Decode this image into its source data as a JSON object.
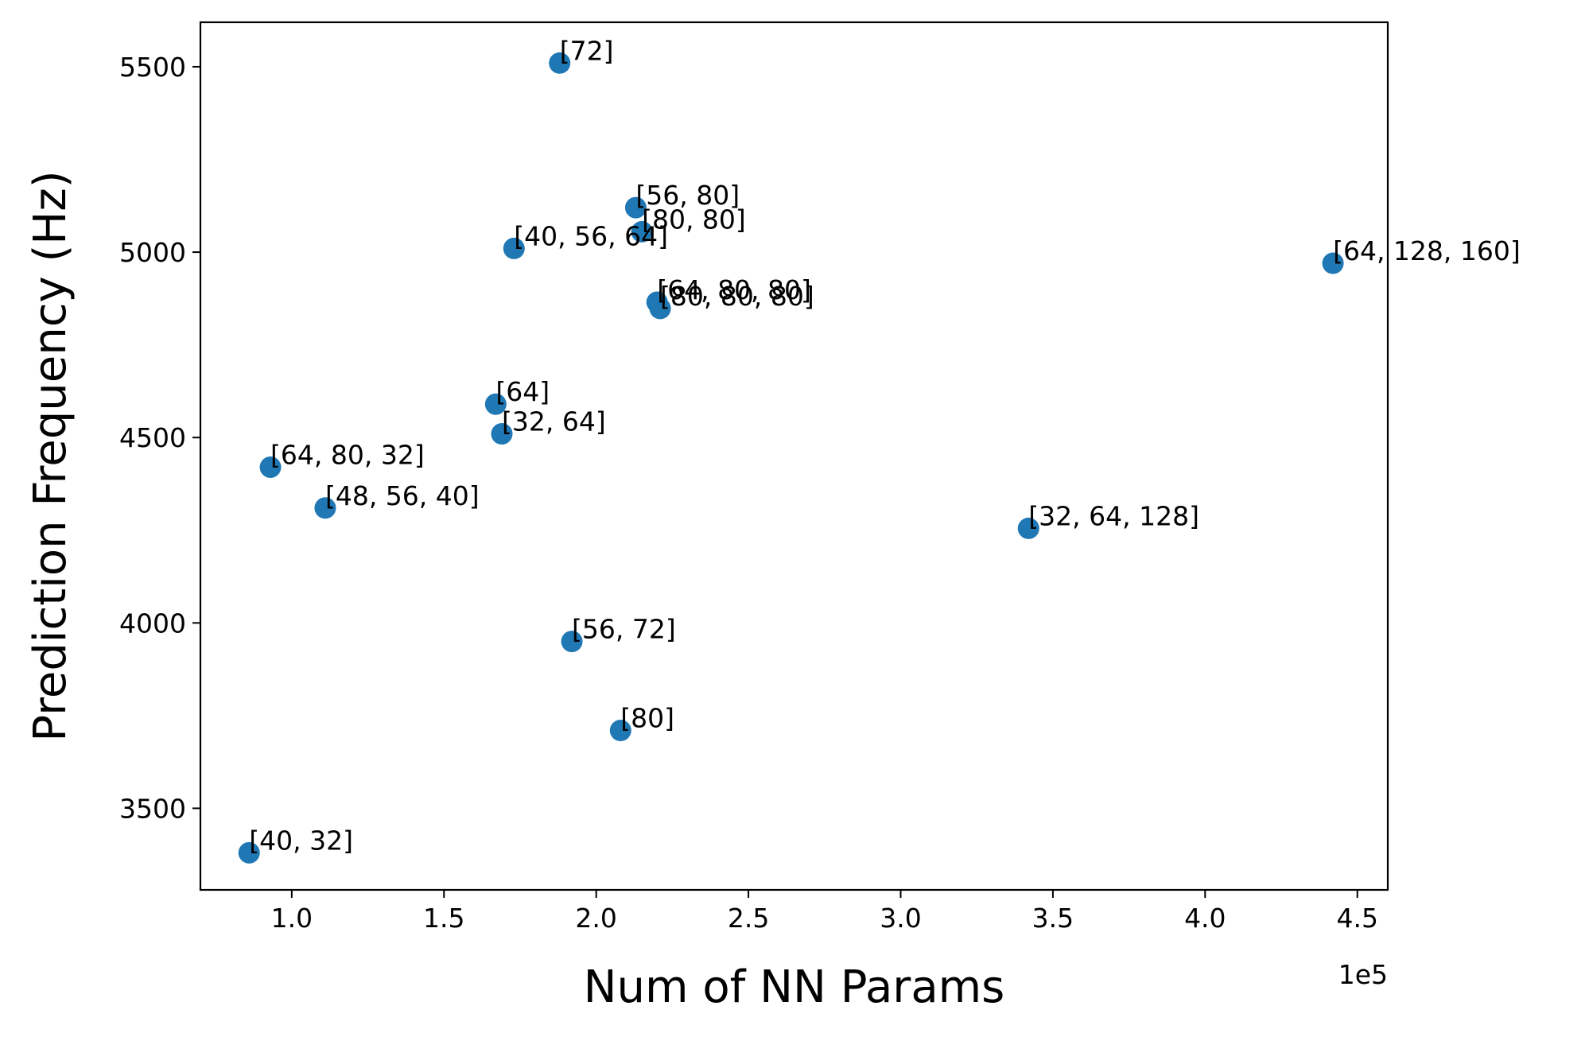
{
  "chart_data": {
    "type": "scatter",
    "title": "",
    "xlabel": "Num of NN Params",
    "ylabel": "Prediction Frequency (Hz)",
    "x_offset_label": "1e5",
    "xlim": [
      0.7,
      4.6
    ],
    "ylim": [
      3280,
      5620
    ],
    "xticks": [
      1.0,
      1.5,
      2.0,
      2.5,
      3.0,
      3.5,
      4.0,
      4.5
    ],
    "xtick_labels": [
      "1.0",
      "1.5",
      "2.0",
      "2.5",
      "3.0",
      "3.5",
      "4.0",
      "4.5"
    ],
    "yticks": [
      3500,
      4000,
      4500,
      5000,
      5500
    ],
    "ytick_labels": [
      "3500",
      "4000",
      "4500",
      "5000",
      "5500"
    ],
    "grid": false,
    "marker_color": "#1f77b4",
    "points": [
      {
        "x": 1.88,
        "y": 5510,
        "label": "[72]"
      },
      {
        "x": 2.13,
        "y": 5120,
        "label": "[56, 80]"
      },
      {
        "x": 2.15,
        "y": 5055,
        "label": "[80, 80]"
      },
      {
        "x": 1.73,
        "y": 5010,
        "label": "[40, 56, 64]"
      },
      {
        "x": 4.42,
        "y": 4970,
        "label": "[64, 128, 160]"
      },
      {
        "x": 2.2,
        "y": 4865,
        "label": "[64, 80, 80]"
      },
      {
        "x": 2.21,
        "y": 4848,
        "label": "[80, 80, 80]"
      },
      {
        "x": 1.67,
        "y": 4590,
        "label": "[64]"
      },
      {
        "x": 1.69,
        "y": 4510,
        "label": "[32, 64]"
      },
      {
        "x": 0.93,
        "y": 4420,
        "label": "[64, 80, 32]"
      },
      {
        "x": 1.11,
        "y": 4310,
        "label": "[48, 56, 40]"
      },
      {
        "x": 3.42,
        "y": 4255,
        "label": "[32, 64, 128]"
      },
      {
        "x": 1.92,
        "y": 3950,
        "label": "[56, 72]"
      },
      {
        "x": 2.08,
        "y": 3710,
        "label": "[80]"
      },
      {
        "x": 0.86,
        "y": 3380,
        "label": "[40, 32]"
      }
    ]
  }
}
